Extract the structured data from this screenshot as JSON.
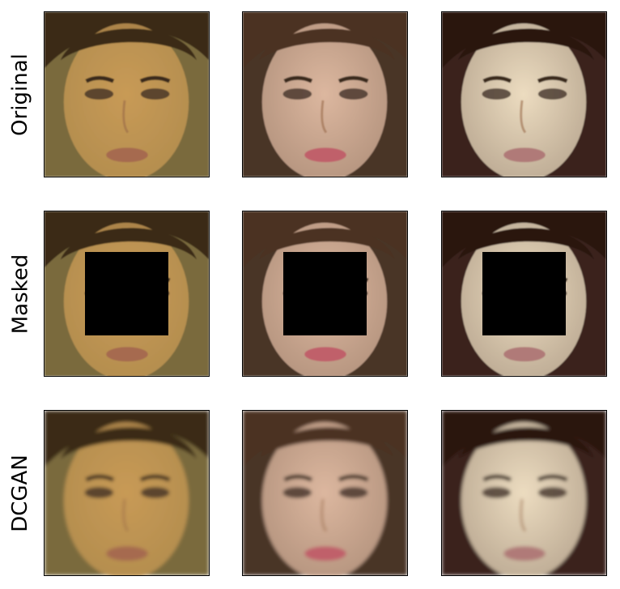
{
  "figure": {
    "rows": [
      {
        "label": "Original",
        "kind": "original"
      },
      {
        "label": "Masked",
        "kind": "masked"
      },
      {
        "label": "DCGAN",
        "kind": "dcgan"
      }
    ],
    "columns": [
      {
        "subject": "face-1",
        "skin": "#c89a55",
        "bg": "#7a6a3e",
        "hair": "#3a2a18",
        "lips": "#a66a50"
      },
      {
        "subject": "face-2",
        "skin": "#dcb79f",
        "bg": "#4a3526",
        "hair": "#4b3221",
        "lips": "#c0616a"
      },
      {
        "subject": "face-3",
        "skin": "#ecdcc0",
        "bg": "#3a231b",
        "hair": "#2a1611",
        "lips": "#b07a78"
      }
    ],
    "mask_color": "#000000"
  }
}
